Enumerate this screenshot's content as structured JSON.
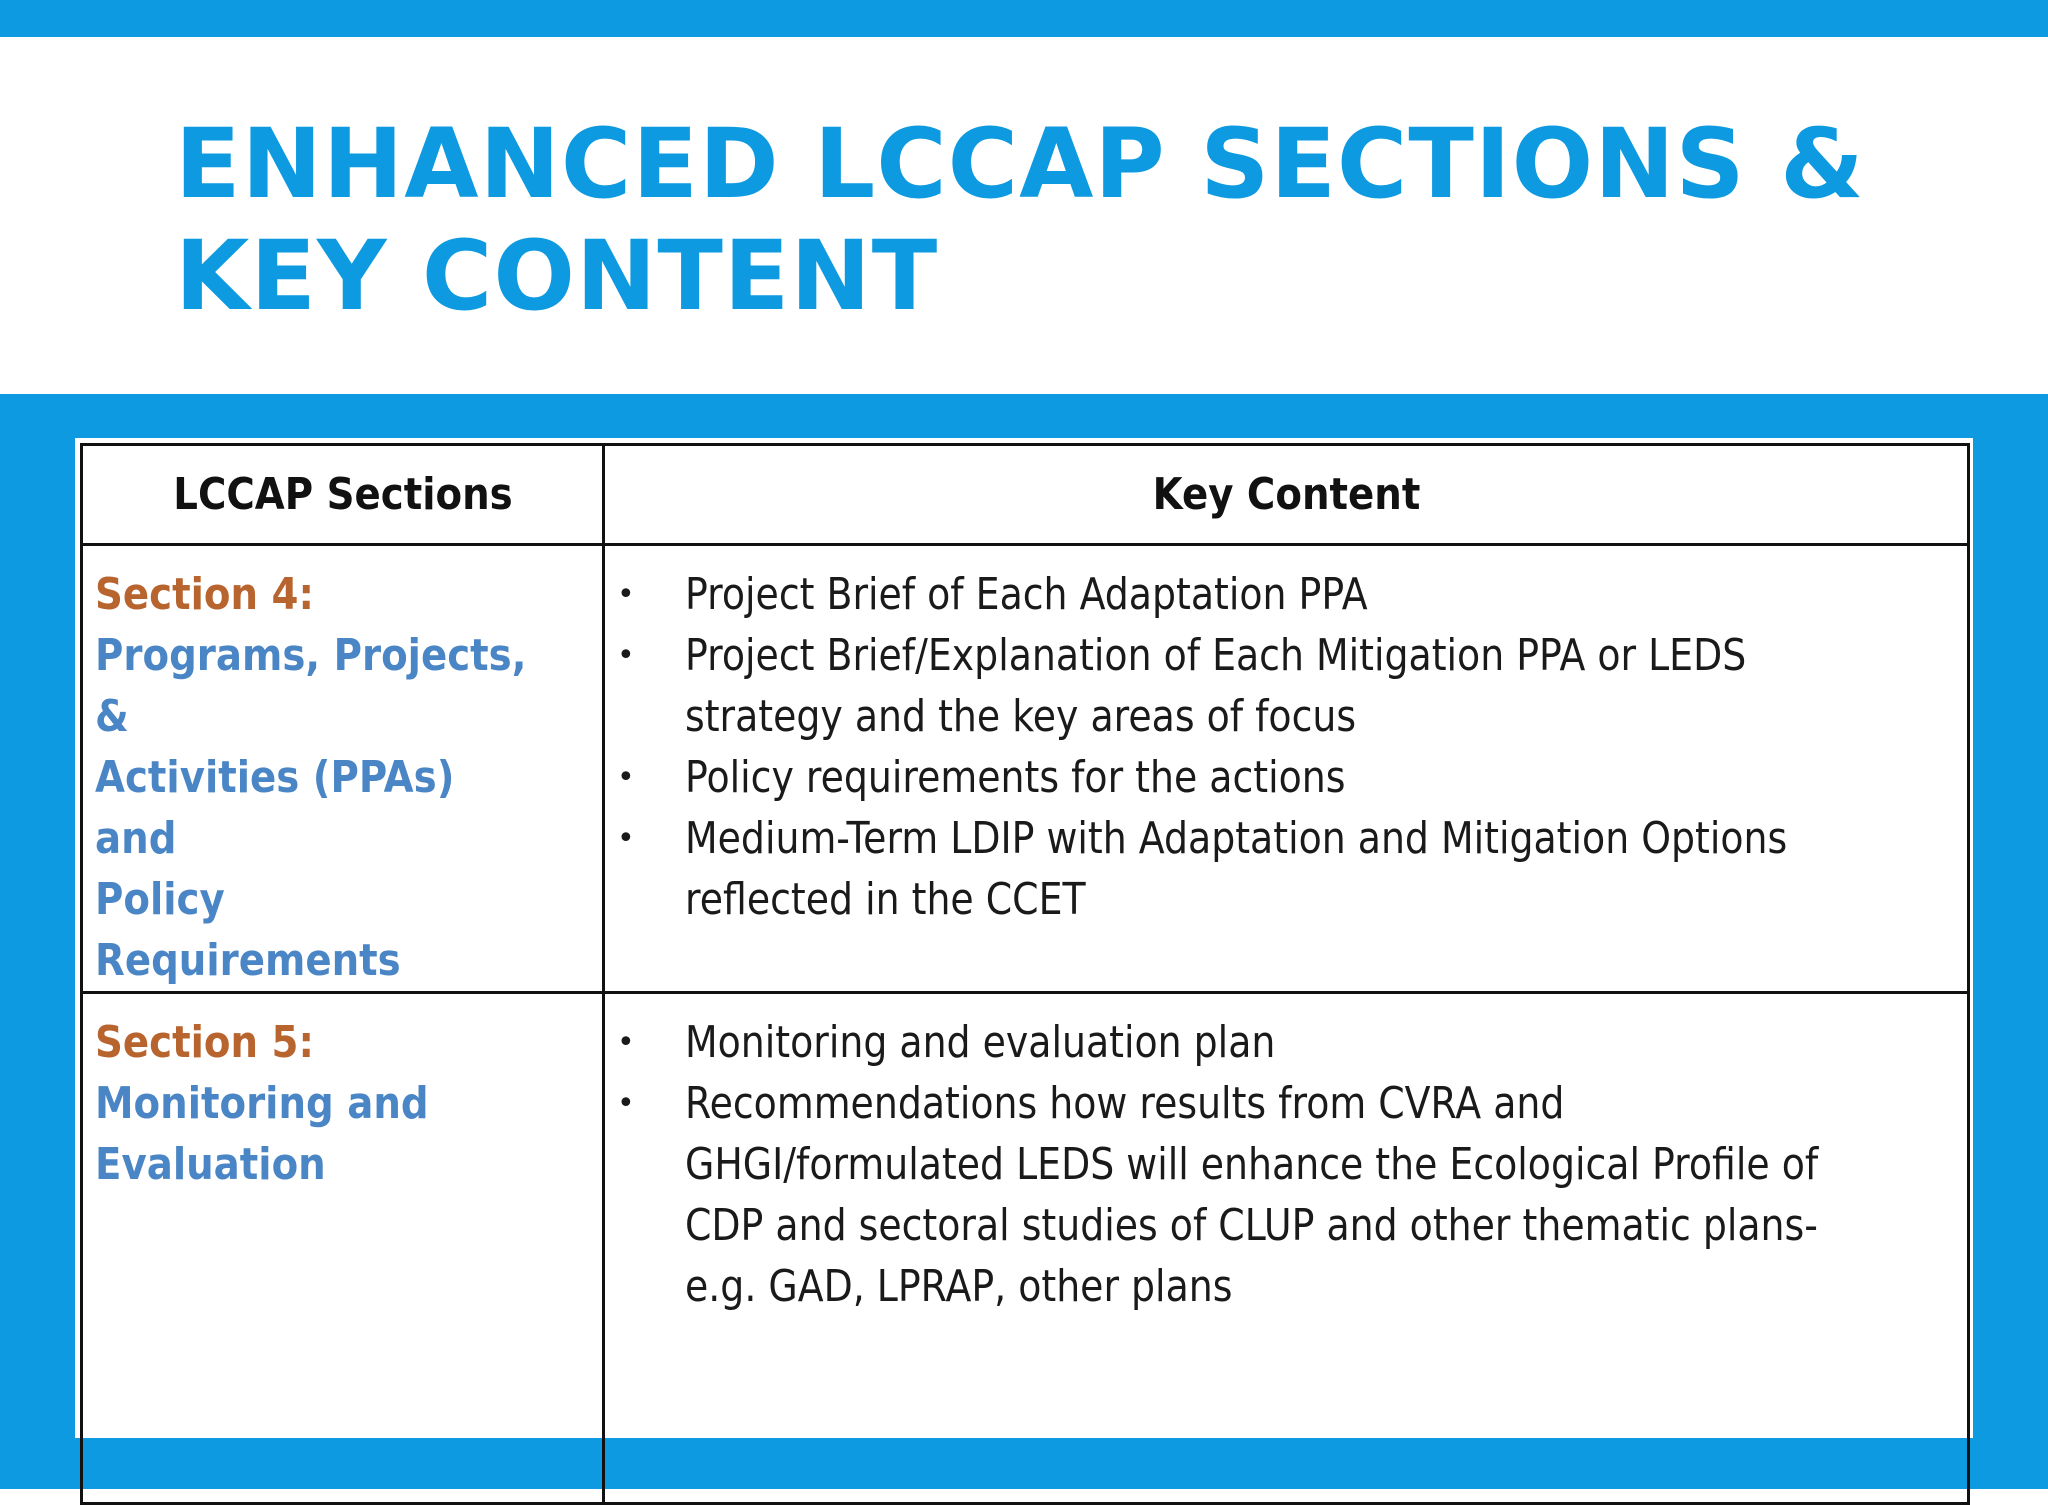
{
  "slide": {
    "title_line1": "ENHANCED LCCAP SECTIONS &",
    "title_line2": "KEY CONTENT",
    "accent_color": "#0d9ae0"
  },
  "table": {
    "headers": {
      "sections": "LCCAP Sections",
      "content": "Key Content"
    },
    "rows": [
      {
        "section_label": "Section 4:",
        "section_name": "Programs, Projects, &\nActivities (PPAs) and\nPolicy Requirements",
        "points": [
          "Project Brief of Each Adaptation PPA",
          "Project Brief/Explanation of Each Mitigation PPA or LEDS\nstrategy and the key areas of focus",
          "Policy requirements for the actions",
          "Medium-Term LDIP with Adaptation and Mitigation Options\nreflected in the CCET"
        ]
      },
      {
        "section_label": "Section 5:",
        "section_name": "Monitoring and\nEvaluation",
        "points": [
          "Monitoring and  evaluation  plan",
          "Recommendations how results from CVRA and\nGHGI/formulated LEDS will enhance the Ecological Profile of\nCDP and sectoral studies of CLUP and other thematic plans-\ne.g. GAD, LPRAP, other plans"
        ]
      }
    ],
    "bullet_symbol": "•",
    "section_label_color": "#b8642e",
    "section_name_color": "#4a86c5"
  }
}
